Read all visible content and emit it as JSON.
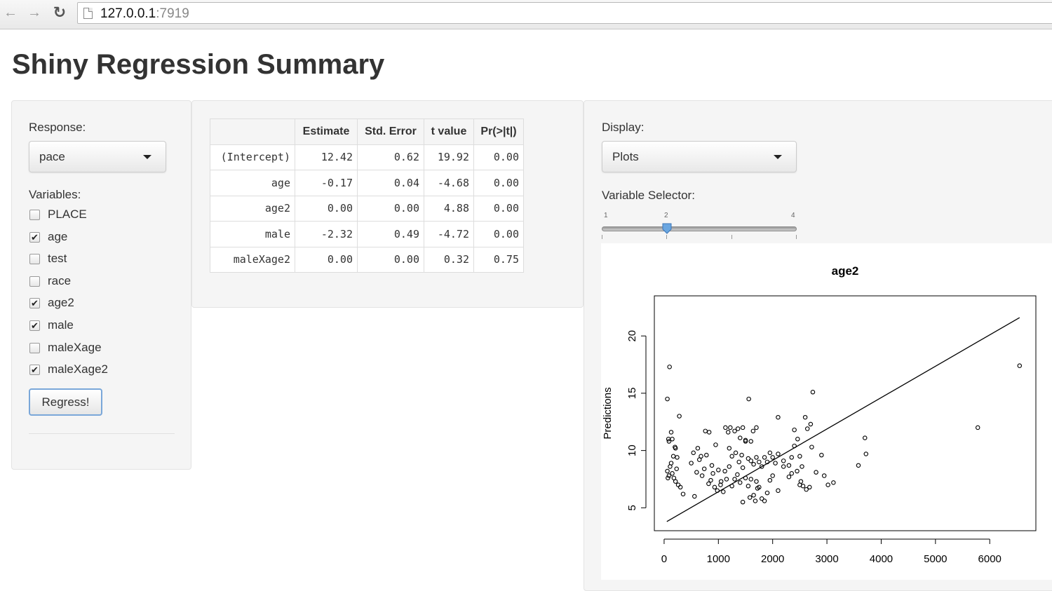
{
  "browser": {
    "url_host": "127.0.0.1",
    "url_port": ":7919"
  },
  "page_title": "Shiny Regression Summary",
  "sidebar": {
    "response_label": "Response:",
    "response_value": "pace",
    "variables_label": "Variables:",
    "variables": [
      {
        "label": "PLACE",
        "checked": false
      },
      {
        "label": "age",
        "checked": true
      },
      {
        "label": "test",
        "checked": false
      },
      {
        "label": "race",
        "checked": false
      },
      {
        "label": "age2",
        "checked": true
      },
      {
        "label": "male",
        "checked": true
      },
      {
        "label": "maleXage",
        "checked": false
      },
      {
        "label": "maleXage2",
        "checked": true
      }
    ],
    "regress_label": "Regress!"
  },
  "summary_table": {
    "headers": [
      "",
      "Estimate",
      "Std. Error",
      "t value",
      "Pr(>|t|)"
    ],
    "rows": [
      [
        "(Intercept)",
        "12.42",
        "0.62",
        "19.92",
        "0.00"
      ],
      [
        "age",
        "-0.17",
        "0.04",
        "-4.68",
        "0.00"
      ],
      [
        "age2",
        "0.00",
        "0.00",
        "4.88",
        "0.00"
      ],
      [
        "male",
        "-2.32",
        "0.49",
        "-4.72",
        "0.00"
      ],
      [
        "maleXage2",
        "0.00",
        "0.00",
        "0.32",
        "0.75"
      ]
    ]
  },
  "right_panel": {
    "display_label": "Display:",
    "display_value": "Plots",
    "selector_label": "Variable Selector:",
    "slider": {
      "min": 1,
      "max": 4,
      "value": 2,
      "tick_labels": [
        "1",
        "2",
        "4"
      ]
    }
  },
  "chart_data": {
    "type": "scatter",
    "title": "age2",
    "xlabel": "",
    "ylabel": "Predictions",
    "xlim": [
      -180,
      6850
    ],
    "ylim": [
      3,
      23.5
    ],
    "xticks": [
      0,
      1000,
      2000,
      3000,
      4000,
      5000,
      6000
    ],
    "yticks": [
      5,
      10,
      15,
      20
    ],
    "line": {
      "x": [
        50,
        6550
      ],
      "y": [
        3.8,
        21.6
      ]
    },
    "points": [
      [
        60,
        14.5
      ],
      [
        100,
        17.3
      ],
      [
        280,
        13
      ],
      [
        80,
        11
      ],
      [
        130,
        11.6
      ],
      [
        90,
        10.8
      ],
      [
        150,
        11
      ],
      [
        170,
        9.5
      ],
      [
        200,
        10.3
      ],
      [
        210,
        10.2
      ],
      [
        240,
        9.4
      ],
      [
        60,
        8.2
      ],
      [
        90,
        7.8
      ],
      [
        110,
        8.6
      ],
      [
        150,
        8.0
      ],
      [
        180,
        7.6
      ],
      [
        210,
        7.3
      ],
      [
        230,
        8.4
      ],
      [
        260,
        7.0
      ],
      [
        300,
        6.8
      ],
      [
        350,
        6.2
      ],
      [
        70,
        7.6
      ],
      [
        130,
        8.9
      ],
      [
        500,
        8.9
      ],
      [
        560,
        6.0
      ],
      [
        600,
        8.1
      ],
      [
        650,
        9.2
      ],
      [
        700,
        7.8
      ],
      [
        740,
        8.4
      ],
      [
        780,
        9.6
      ],
      [
        820,
        7.1
      ],
      [
        860,
        7.4
      ],
      [
        900,
        8.0
      ],
      [
        930,
        6.8
      ],
      [
        980,
        6.5
      ],
      [
        1040,
        7.0
      ],
      [
        1090,
        6.4
      ],
      [
        1150,
        7.5
      ],
      [
        1200,
        8.6
      ],
      [
        1250,
        6.9
      ],
      [
        1300,
        7.5
      ],
      [
        1350,
        7.9
      ],
      [
        1400,
        7.2
      ],
      [
        1450,
        8.5
      ],
      [
        540,
        9.8
      ],
      [
        620,
        10.2
      ],
      [
        680,
        9.5
      ],
      [
        760,
        11.7
      ],
      [
        830,
        11.6
      ],
      [
        880,
        8.7
      ],
      [
        950,
        10.5
      ],
      [
        1000,
        8.3
      ],
      [
        1050,
        7.3
      ],
      [
        1120,
        8.2
      ],
      [
        1130,
        12.0
      ],
      [
        1180,
        11.6
      ],
      [
        1220,
        12.0
      ],
      [
        1300,
        11.7
      ],
      [
        1360,
        11.9
      ],
      [
        1400,
        11.1
      ],
      [
        1450,
        12.0
      ],
      [
        1500,
        10.8
      ],
      [
        1550,
        9.3
      ],
      [
        1600,
        9.1
      ],
      [
        1200,
        10.2
      ],
      [
        1250,
        9.5
      ],
      [
        1320,
        9.8
      ],
      [
        1380,
        9.0
      ],
      [
        1430,
        9.6
      ],
      [
        1500,
        10.9
      ],
      [
        1560,
        14.5
      ],
      [
        1600,
        10.8
      ],
      [
        1640,
        11.7
      ],
      [
        1700,
        12.0
      ],
      [
        1650,
        8.8
      ],
      [
        1700,
        9.4
      ],
      [
        1750,
        9.0
      ],
      [
        1800,
        8.6
      ],
      [
        1850,
        9.4
      ],
      [
        1900,
        9.0
      ],
      [
        1950,
        9.8
      ],
      [
        2000,
        9.4
      ],
      [
        2050,
        8.9
      ],
      [
        2100,
        12.9
      ],
      [
        1500,
        7.6
      ],
      [
        1550,
        6.9
      ],
      [
        1600,
        7.5
      ],
      [
        1650,
        6.1
      ],
      [
        1700,
        7.3
      ],
      [
        1750,
        6.8
      ],
      [
        1800,
        5.8
      ],
      [
        1850,
        5.6
      ],
      [
        1900,
        6.3
      ],
      [
        1950,
        7.4
      ],
      [
        1450,
        5.5
      ],
      [
        1580,
        5.9
      ],
      [
        1680,
        5.6
      ],
      [
        1720,
        6.7
      ],
      [
        2000,
        7.8
      ],
      [
        2100,
        6.5
      ],
      [
        2200,
        8.6
      ],
      [
        2300,
        7.7
      ],
      [
        2350,
        9.4
      ],
      [
        2400,
        10.4
      ],
      [
        2400,
        11.8
      ],
      [
        2460,
        11.0
      ],
      [
        2500,
        9.5
      ],
      [
        2540,
        8.6
      ],
      [
        2600,
        12.9
      ],
      [
        2640,
        11.9
      ],
      [
        2700,
        12.3
      ],
      [
        2740,
        15.1
      ],
      [
        2720,
        10.3
      ],
      [
        2800,
        8.1
      ],
      [
        2450,
        8.2
      ],
      [
        2500,
        7.0
      ],
      [
        2560,
        6.9
      ],
      [
        2620,
        6.6
      ],
      [
        2680,
        6.8
      ],
      [
        2520,
        7.3
      ],
      [
        2900,
        9.6
      ],
      [
        2950,
        7.8
      ],
      [
        3020,
        7.0
      ],
      [
        3120,
        7.2
      ],
      [
        2100,
        9.7
      ],
      [
        2200,
        9.1
      ],
      [
        2300,
        8.7
      ],
      [
        2350,
        8.0
      ],
      [
        3580,
        8.7
      ],
      [
        3700,
        11.1
      ],
      [
        3720,
        9.7
      ],
      [
        5780,
        12.0
      ],
      [
        6550,
        17.4
      ]
    ]
  }
}
